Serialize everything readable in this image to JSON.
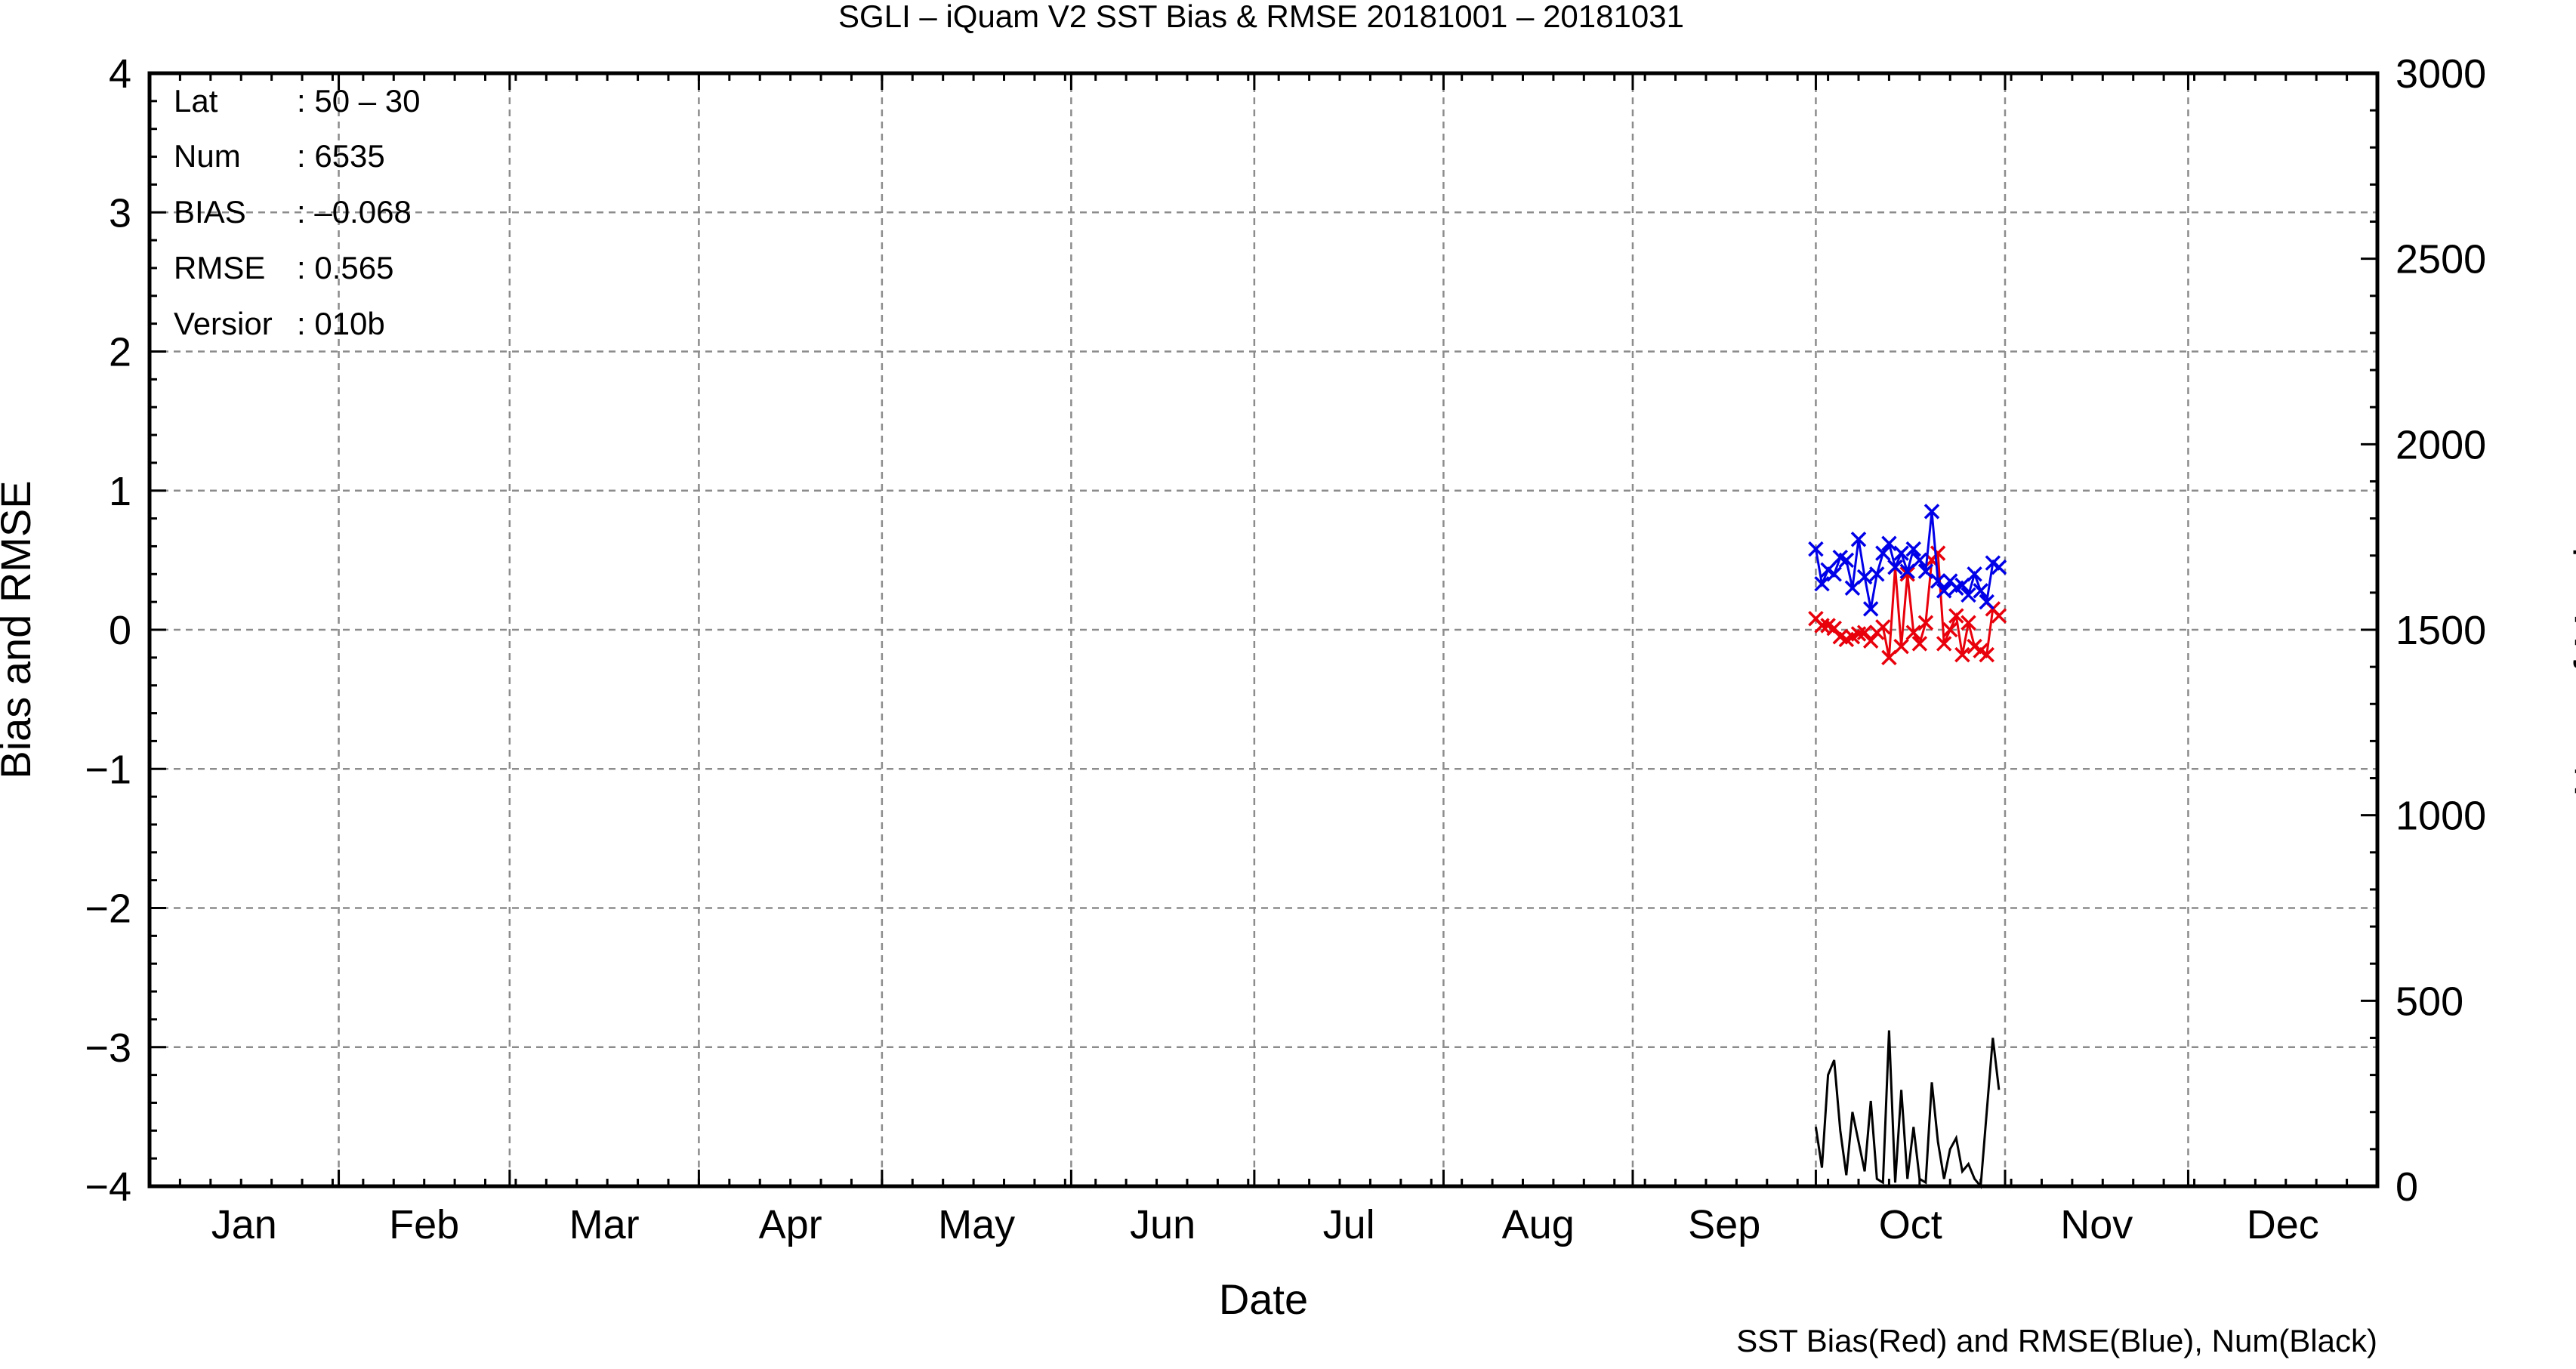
{
  "chart_data": {
    "type": "line",
    "title": "SGLI – iQuam V2 SST Bias & RMSE 20181001 – 20181031",
    "xlabel": "Date",
    "ylabel_left": "Bias and RMSE",
    "ylabel_right": "Num of Match–up",
    "footer": "SST Bias(Red) and RMSE(Blue), Num(Black)",
    "months": [
      "Jan",
      "Feb",
      "Mar",
      "Apr",
      "May",
      "Jun",
      "Jul",
      "Aug",
      "Sep",
      "Oct",
      "Nov",
      "Dec"
    ],
    "x_range_day_of_year": [
      1,
      366
    ],
    "ylim_left": [
      -4,
      4
    ],
    "ylim_right": [
      0,
      3000
    ],
    "yticks_left": [
      "4",
      "3",
      "2",
      "1",
      "0",
      "−1",
      "−2",
      "−3",
      "−4"
    ],
    "yticks_right": [
      "3000",
      "2500",
      "2000",
      "1500",
      "1000",
      "500",
      "0"
    ],
    "grid": true,
    "info_box": {
      "labels": [
        "Lat",
        "Num",
        "BIAS",
        "RMSE",
        "Versior"
      ],
      "values": [
        ": 50 – 30",
        ": 6535",
        ": –0.068",
        ": 0.565",
        ": 010b"
      ]
    },
    "series": [
      {
        "name": "Bias",
        "color": "#e8000b",
        "axis": "left",
        "marker": "x",
        "x_day_of_year": [
          274,
          275,
          276,
          277,
          278,
          279,
          280,
          281,
          282,
          283,
          284,
          285,
          286,
          287,
          288,
          289,
          290,
          291,
          292,
          293,
          294,
          295,
          296,
          297,
          298,
          299,
          300,
          301,
          302,
          303,
          304
        ],
        "values": [
          0.08,
          0.03,
          0.03,
          0.01,
          -0.05,
          -0.07,
          -0.05,
          -0.03,
          -0.02,
          -0.08,
          -0.02,
          0.02,
          -0.2,
          0.45,
          -0.12,
          0.4,
          -0.02,
          -0.1,
          0.05,
          0.5,
          0.55,
          -0.1,
          0.0,
          0.1,
          -0.18,
          0.05,
          -0.12,
          -0.15,
          -0.18,
          0.15,
          0.1
        ]
      },
      {
        "name": "RMSE",
        "color": "#0000e8",
        "axis": "left",
        "marker": "x",
        "x_day_of_year": [
          274,
          275,
          276,
          277,
          278,
          279,
          280,
          281,
          282,
          283,
          284,
          285,
          286,
          287,
          288,
          289,
          290,
          291,
          292,
          293,
          294,
          295,
          296,
          297,
          298,
          299,
          300,
          301,
          302,
          303,
          304
        ],
        "values": [
          0.58,
          0.33,
          0.43,
          0.4,
          0.52,
          0.5,
          0.3,
          0.65,
          0.38,
          0.15,
          0.4,
          0.55,
          0.62,
          0.45,
          0.55,
          0.42,
          0.58,
          0.5,
          0.42,
          0.85,
          0.35,
          0.28,
          0.35,
          0.3,
          0.32,
          0.25,
          0.4,
          0.28,
          0.2,
          0.48,
          0.45
        ]
      },
      {
        "name": "Num",
        "color": "#000000",
        "axis": "right",
        "marker": "none",
        "x_day_of_year": [
          274,
          275,
          276,
          277,
          278,
          279,
          280,
          281,
          282,
          283,
          284,
          285,
          286,
          287,
          288,
          289,
          290,
          291,
          292,
          293,
          294,
          295,
          296,
          297,
          298,
          299,
          300,
          301,
          302,
          303,
          304
        ],
        "values": [
          160,
          50,
          300,
          340,
          150,
          30,
          200,
          120,
          40,
          230,
          20,
          10,
          420,
          10,
          260,
          20,
          160,
          20,
          10,
          280,
          120,
          20,
          100,
          130,
          40,
          60,
          20,
          0,
          200,
          400,
          260
        ]
      }
    ]
  }
}
